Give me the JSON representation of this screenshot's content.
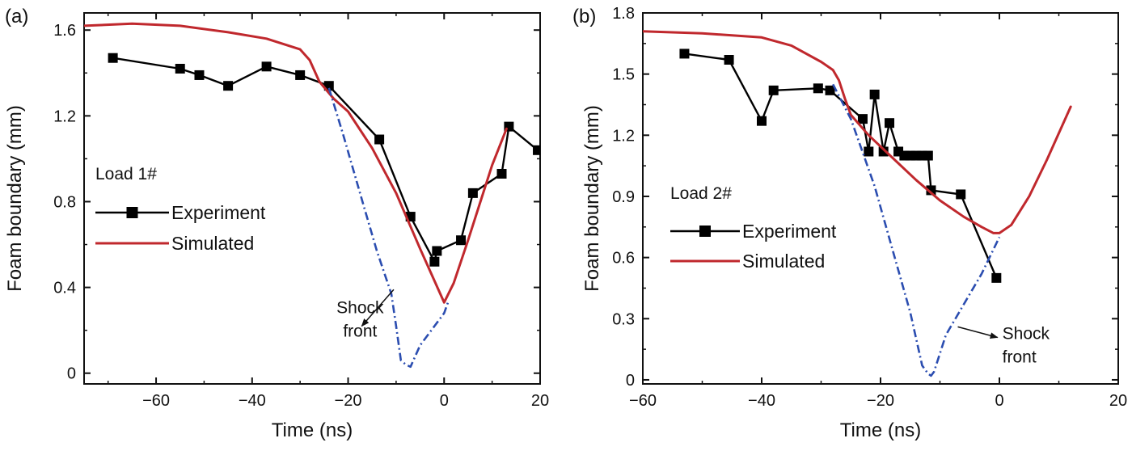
{
  "chart_data": [
    {
      "type": "line",
      "panel_label": "(a)",
      "xlabel": "Time (ns)",
      "ylabel": "Foam boundary (mm)",
      "xlim": [
        -75,
        20
      ],
      "ylim": [
        -0.05,
        1.68
      ],
      "xticks": [
        -60,
        -40,
        -20,
        0,
        20
      ],
      "xtick_labels": [
        "−60",
        "−40",
        "−20",
        "0",
        "20"
      ],
      "yticks": [
        0,
        0.4,
        0.8,
        1.2,
        1.6
      ],
      "ytick_labels": [
        "0",
        "0.4",
        "0.8",
        "1.2",
        "1.6"
      ],
      "grid": false,
      "legend_title": "Load 1#",
      "legend_placement": "left-center",
      "series": [
        {
          "name": "Experiment",
          "style": "line-square-markers",
          "color": "#000000",
          "x": [
            -69,
            -55,
            -51,
            -45,
            -37,
            -30,
            -24,
            -13.5,
            -7,
            -2,
            -1.5,
            3.5,
            6,
            12,
            13.5,
            19.5
          ],
          "y": [
            1.47,
            1.42,
            1.39,
            1.34,
            1.43,
            1.39,
            1.34,
            1.09,
            0.73,
            0.52,
            0.57,
            0.62,
            0.84,
            0.93,
            1.15,
            1.04
          ]
        },
        {
          "name": "Simulated",
          "style": "solid",
          "color": "#c0282d",
          "x": [
            -75,
            -65,
            -55,
            -45,
            -37,
            -30,
            -28,
            -26,
            -23,
            -20,
            -15,
            -10,
            -5,
            -2,
            0,
            2,
            5,
            10,
            13
          ],
          "y": [
            1.62,
            1.63,
            1.62,
            1.59,
            1.56,
            1.51,
            1.46,
            1.36,
            1.28,
            1.22,
            1.05,
            0.84,
            0.58,
            0.43,
            0.33,
            0.42,
            0.62,
            0.97,
            1.14
          ]
        },
        {
          "name": "Shock front",
          "style": "dash-dot",
          "color": "#2b4db0",
          "x": [
            -24,
            -21,
            -17,
            -14,
            -11,
            -10,
            -9,
            -8,
            -7,
            -5,
            -2,
            0,
            0.8
          ],
          "y": [
            1.33,
            1.11,
            0.8,
            0.57,
            0.37,
            0.22,
            0.06,
            0.04,
            0.03,
            0.13,
            0.22,
            0.28,
            0.33
          ]
        }
      ],
      "annotations": [
        {
          "lines": [
            "Shock",
            "front"
          ],
          "x": -17.5,
          "y": 0.28,
          "arrow_to": [
            -10.5,
            0.39
          ]
        }
      ]
    },
    {
      "type": "line",
      "panel_label": "(b)",
      "xlabel": "Time (ns)",
      "ylabel": "Foam boundary (mm)",
      "xlim": [
        -60,
        20
      ],
      "ylim": [
        -0.02,
        1.8
      ],
      "xticks": [
        -60,
        -40,
        -20,
        0,
        20
      ],
      "xtick_labels": [
        "−60",
        "−40",
        "−20",
        "0",
        "20"
      ],
      "yticks": [
        0,
        0.3,
        0.6,
        0.9,
        1.2,
        1.5,
        1.8
      ],
      "ytick_labels": [
        "0",
        "0.3",
        "0.6",
        "0.9",
        "1.2",
        "1.5",
        "1.8"
      ],
      "grid": false,
      "legend_title": "Load 2#",
      "legend_placement": "left-center",
      "series": [
        {
          "name": "Experiment",
          "style": "line-square-markers",
          "color": "#000000",
          "x": [
            -53,
            -45.5,
            -40,
            -38,
            -30.5,
            -28.5,
            -23,
            -22,
            -21,
            -19.5,
            -18.5,
            -17,
            -16,
            -15,
            -14,
            -13,
            -12,
            -11.5,
            -6.5,
            -0.5
          ],
          "y": [
            1.6,
            1.57,
            1.27,
            1.42,
            1.43,
            1.42,
            1.28,
            1.12,
            1.4,
            1.12,
            1.26,
            1.12,
            1.1,
            1.1,
            1.1,
            1.1,
            1.1,
            0.93,
            0.91,
            0.5
          ]
        },
        {
          "name": "Simulated",
          "style": "solid",
          "color": "#c0282d",
          "x": [
            -60,
            -50,
            -40,
            -35,
            -30,
            -28,
            -27,
            -26,
            -25,
            -22,
            -18,
            -14,
            -10,
            -6,
            -3,
            -1,
            0,
            2,
            5,
            8,
            12
          ],
          "y": [
            1.71,
            1.7,
            1.68,
            1.64,
            1.56,
            1.52,
            1.47,
            1.38,
            1.3,
            1.2,
            1.09,
            0.98,
            0.88,
            0.8,
            0.75,
            0.72,
            0.72,
            0.76,
            0.9,
            1.08,
            1.34
          ]
        },
        {
          "name": "Shock front",
          "style": "dash-dot",
          "color": "#2b4db0",
          "x": [
            -28,
            -25,
            -21,
            -18,
            -15,
            -13,
            -12,
            -11.5,
            -11,
            -9,
            -6,
            -3,
            0
          ],
          "y": [
            1.45,
            1.28,
            0.95,
            0.64,
            0.33,
            0.07,
            0.03,
            0.02,
            0.04,
            0.22,
            0.37,
            0.52,
            0.7
          ]
        }
      ],
      "annotations": [
        {
          "lines": [
            "Shock",
            "front"
          ],
          "x": 0.5,
          "y": 0.2,
          "arrow_to": [
            -7,
            0.26
          ]
        }
      ]
    }
  ]
}
